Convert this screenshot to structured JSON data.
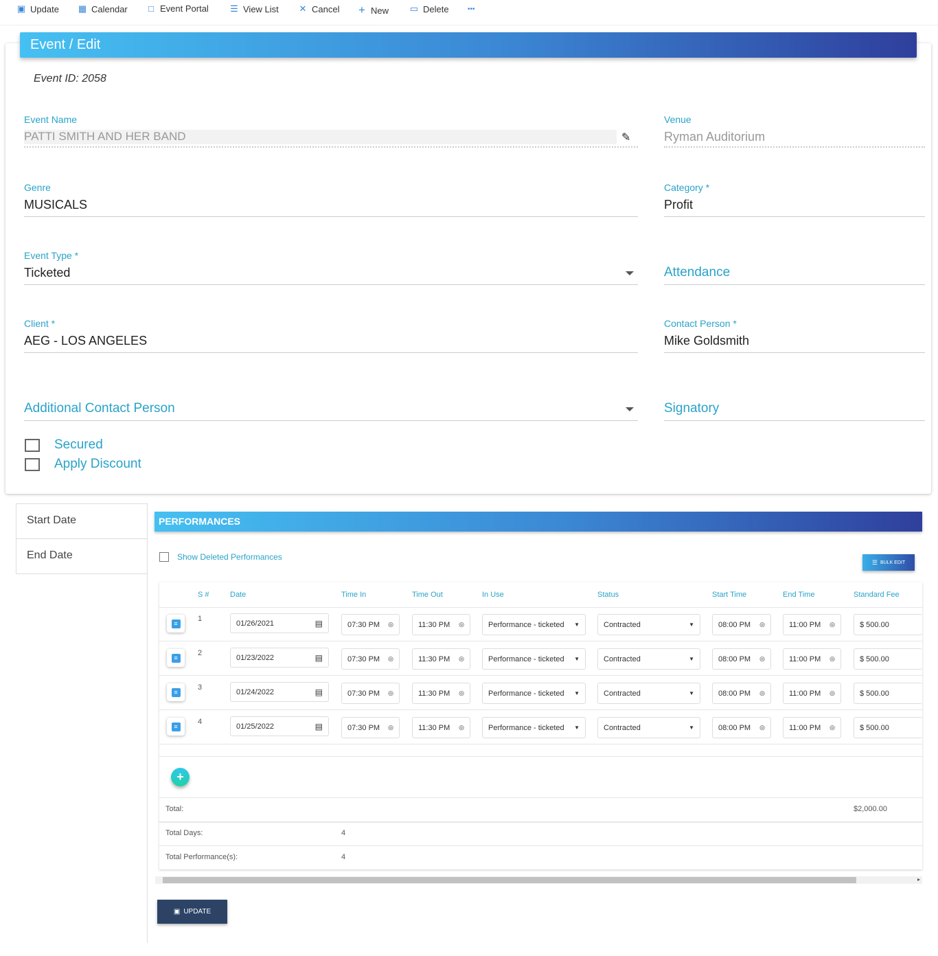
{
  "toolbar": {
    "items": [
      {
        "label": "Update",
        "icon": "save-icon"
      },
      {
        "label": "Calendar",
        "icon": "calendar-icon"
      },
      {
        "label": "Event Portal",
        "icon": "monitor-icon"
      },
      {
        "label": "View List",
        "icon": "list-icon"
      },
      {
        "label": "Cancel",
        "icon": "close-icon"
      },
      {
        "label": "New",
        "icon": "plus-icon"
      },
      {
        "label": "Delete",
        "icon": "trash-icon"
      }
    ],
    "more": "•••"
  },
  "header": {
    "title": "Event / Edit"
  },
  "event_id": "Event ID: 2058",
  "form": {
    "event_name": {
      "label": "Event Name",
      "value": "PATTI SMITH AND HER BAND"
    },
    "venue": {
      "label": "Venue",
      "value": "Ryman Auditorium"
    },
    "genre": {
      "label": "Genre",
      "value": "MUSICALS"
    },
    "category": {
      "label": "Category *",
      "value": "Profit"
    },
    "event_type": {
      "label": "Event Type *",
      "value": "Ticketed"
    },
    "attendance": {
      "label": "Attendance"
    },
    "client": {
      "label": "Client *",
      "value": "AEG - LOS ANGELES"
    },
    "contact_person": {
      "label": "Contact Person *",
      "value": "Mike Goldsmith"
    },
    "additional_contact": {
      "label": "Additional Contact Person"
    },
    "signatory": {
      "label": "Signatory"
    },
    "secured": {
      "label": "Secured",
      "checked": false
    },
    "apply_discount": {
      "label": "Apply Discount",
      "checked": false
    }
  },
  "side": {
    "start_date": "Start Date",
    "end_date": "End Date"
  },
  "performances": {
    "title": "PERFORMANCES",
    "show_deleted": "Show Deleted Performances",
    "bulk_edit": "BULK EDIT",
    "columns": [
      "S #",
      "Date",
      "Time In",
      "Time Out",
      "In Use",
      "Status",
      "Start Time",
      "End Time",
      "Standard Fee"
    ],
    "rows": [
      {
        "sn": "1",
        "date": "01/26/2021",
        "time_in": "07:30 PM",
        "time_out": "11:30 PM",
        "in_use": "Performance - ticketed",
        "status": "Contracted",
        "start": "08:00 PM",
        "end": "11:00 PM",
        "fee": "$ 500.00"
      },
      {
        "sn": "2",
        "date": "01/23/2022",
        "time_in": "07:30 PM",
        "time_out": "11:30 PM",
        "in_use": "Performance - ticketed",
        "status": "Contracted",
        "start": "08:00 PM",
        "end": "11:00 PM",
        "fee": "$ 500.00"
      },
      {
        "sn": "3",
        "date": "01/24/2022",
        "time_in": "07:30 PM",
        "time_out": "11:30 PM",
        "in_use": "Performance - ticketed",
        "status": "Contracted",
        "start": "08:00 PM",
        "end": "11:00 PM",
        "fee": "$ 500.00"
      },
      {
        "sn": "4",
        "date": "01/25/2022",
        "time_in": "07:30 PM",
        "time_out": "11:30 PM",
        "in_use": "Performance - ticketed",
        "status": "Contracted",
        "start": "08:00 PM",
        "end": "11:00 PM",
        "fee": "$ 500.00"
      }
    ],
    "total_label": "Total:",
    "total_value": "$2,000.00",
    "total_days_label": "Total Days:",
    "total_days": "4",
    "total_perf_label": "Total Performance(s):",
    "total_perf": "4",
    "update": "UPDATE"
  }
}
